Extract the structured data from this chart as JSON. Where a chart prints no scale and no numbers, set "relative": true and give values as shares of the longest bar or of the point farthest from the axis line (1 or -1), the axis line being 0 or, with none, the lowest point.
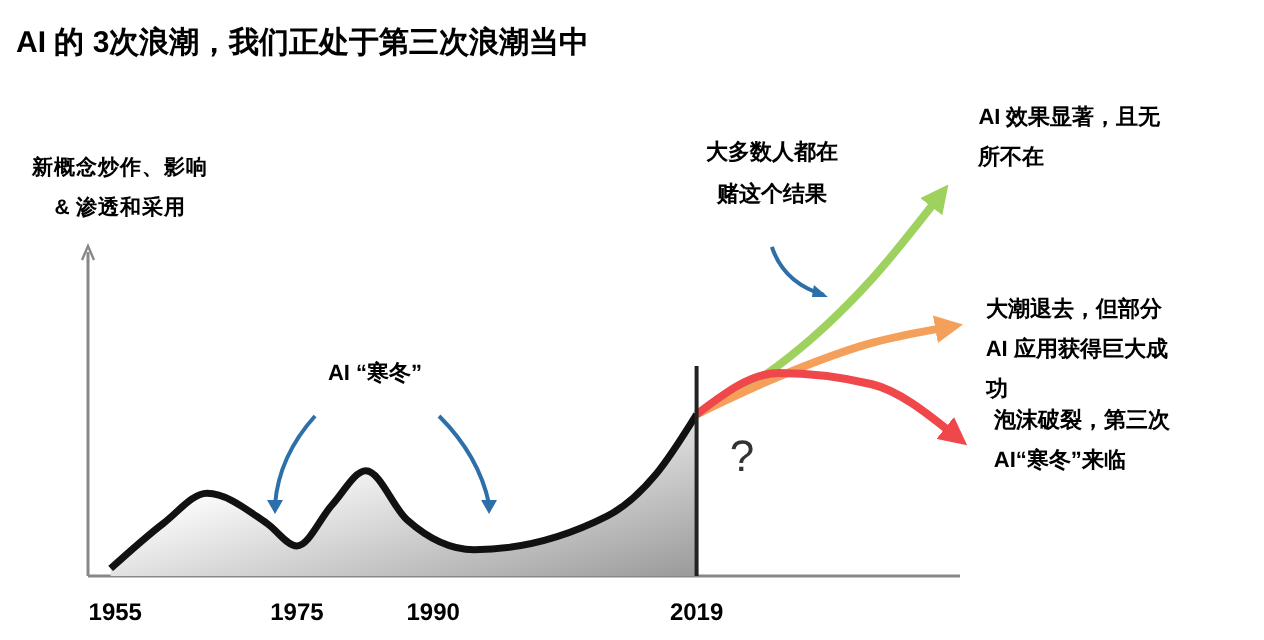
{
  "chart_data": {
    "type": "line",
    "title": "AI 的 3次浪潮，我们正处于第三次浪潮当中",
    "ylabel": "新概念炒作、影响 & 渗透和采用",
    "relative": true,
    "xlim": [
      1952,
      2048
    ],
    "xticks": [
      1955,
      1975,
      1990,
      2019
    ],
    "series": [
      {
        "type": "area",
        "color": "#111111",
        "x": [
          1954.5,
          1960.3,
          1965.1,
          1971.7,
          1975,
          1978.9,
          1982.6,
          1987.1,
          1994.5,
          2009.2,
          2014.5,
          2019
        ],
        "values": [
          0.02,
          0.14,
          0.22,
          0.14,
          0.08,
          0.19,
          0.28,
          0.15,
          0.07,
          0.16,
          0.27,
          0.43
        ]
      },
      {
        "name": "AI 效果显著，且无所不在",
        "color": "#9fd15f",
        "x": [
          2019,
          2028,
          2038.3,
          2045.4
        ],
        "values": [
          0.43,
          0.56,
          0.79,
          1.0
        ]
      },
      {
        "name": "大潮退去，但部分AI 应用获得巨大成功",
        "color": "#f5a05a",
        "x": [
          2019,
          2028,
          2038.3,
          2046.2
        ],
        "values": [
          0.43,
          0.53,
          0.62,
          0.66
        ]
      },
      {
        "name": "泡沫破裂，第三次AI“寒冬”来临",
        "color": "#f0474a",
        "x": [
          2019,
          2028,
          2038.3,
          2047.1
        ],
        "values": [
          0.43,
          0.54,
          0.51,
          0.38
        ]
      }
    ],
    "ref_lines": [
      {
        "axis": "x",
        "value": 2019,
        "color": "#222222"
      }
    ],
    "annotations": [
      "AI “寒冬”",
      "大多数人都在赌这个结果",
      "?"
    ]
  }
}
